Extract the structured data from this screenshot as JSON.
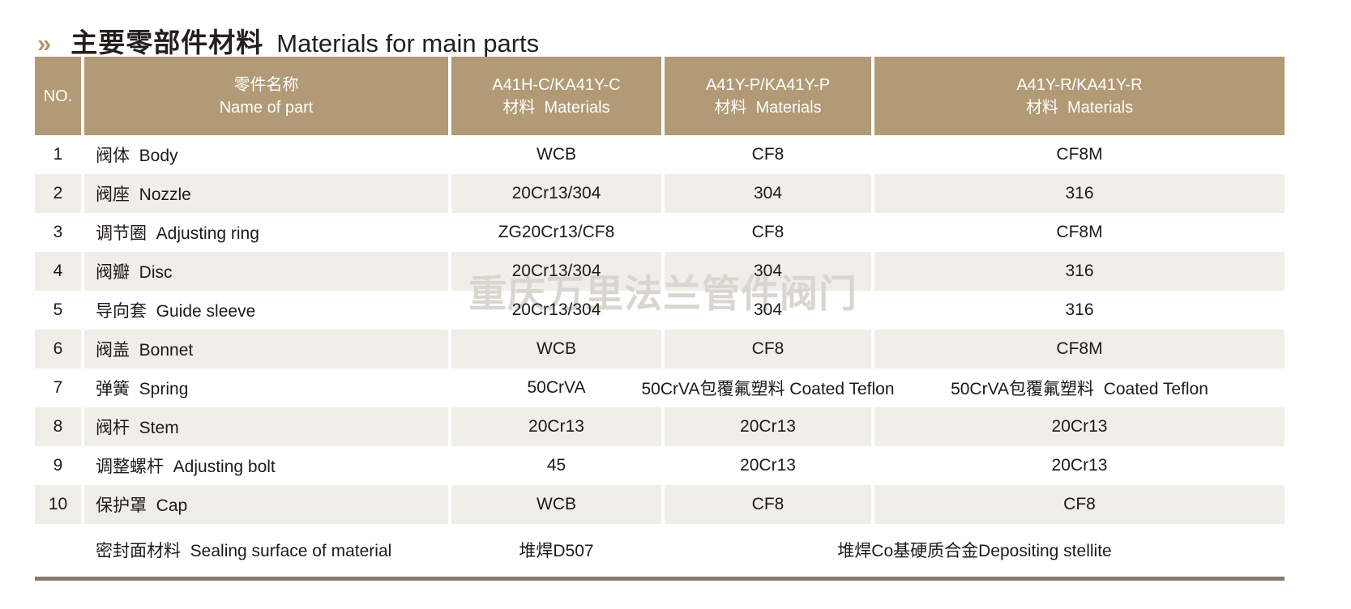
{
  "title": {
    "chevron": "»",
    "zh": "主要零部件材料",
    "en": "Materials for main parts"
  },
  "watermark": "重庆万里法兰管件阀门",
  "colors": {
    "header_bg": "#b29a76",
    "stripe_bg": "#efeee8",
    "accent_gold": "#b2976a",
    "bottom_rule": "#87796d",
    "watermark_gray": "#d9d6d0",
    "text": "#1e1a16"
  },
  "table": {
    "headers": {
      "no": "NO.",
      "name_line1": "零件名称",
      "name_line2": "Name of part",
      "c_line1": "A41H-C/KA41Y-C",
      "c_line2": "材料  Materials",
      "p_line1": "A41Y-P/KA41Y-P",
      "p_line2": "材料  Materials",
      "r_line1": "A41Y-R/KA41Y-R",
      "r_line2": "材料  Materials"
    },
    "rows": [
      {
        "no": "1",
        "name": "阀体  Body",
        "c": "WCB",
        "p": "CF8",
        "r": "CF8M"
      },
      {
        "no": "2",
        "name": "阀座  Nozzle",
        "c": "20Cr13/304",
        "p": "304",
        "r": "316"
      },
      {
        "no": "3",
        "name": "调节圈  Adjusting ring",
        "c": "ZG20Cr13/CF8",
        "p": "CF8",
        "r": "CF8M"
      },
      {
        "no": "4",
        "name": "阀瓣  Disc",
        "c": "20Cr13/304",
        "p": "304",
        "r": "316"
      },
      {
        "no": "5",
        "name": "导向套  Guide sleeve",
        "c": "20Cr13/304",
        "p": "304",
        "r": "316"
      },
      {
        "no": "6",
        "name": "阀盖  Bonnet",
        "c": "WCB",
        "p": "CF8",
        "r": "CF8M"
      },
      {
        "no": "7",
        "name": "弹簧  Spring",
        "c": "50CrVA",
        "p": "50CrVA包覆氟塑料 Coated Teflon",
        "r": "50CrVA包覆氟塑料  Coated Teflon"
      },
      {
        "no": "8",
        "name": "阀杆  Stem",
        "c": "20Cr13",
        "p": "20Cr13",
        "r": "20Cr13"
      },
      {
        "no": "9",
        "name": "调整螺杆  Adjusting bolt",
        "c": "45",
        "p": "20Cr13",
        "r": "20Cr13"
      },
      {
        "no": "10",
        "name": "保护罩  Cap",
        "c": "WCB",
        "p": "CF8",
        "r": "CF8"
      }
    ],
    "footer": {
      "name": "密封面材料  Sealing surface of material",
      "c": "堆焊D507",
      "pr": "堆焊Co基硬质合金Depositing stellite"
    }
  }
}
